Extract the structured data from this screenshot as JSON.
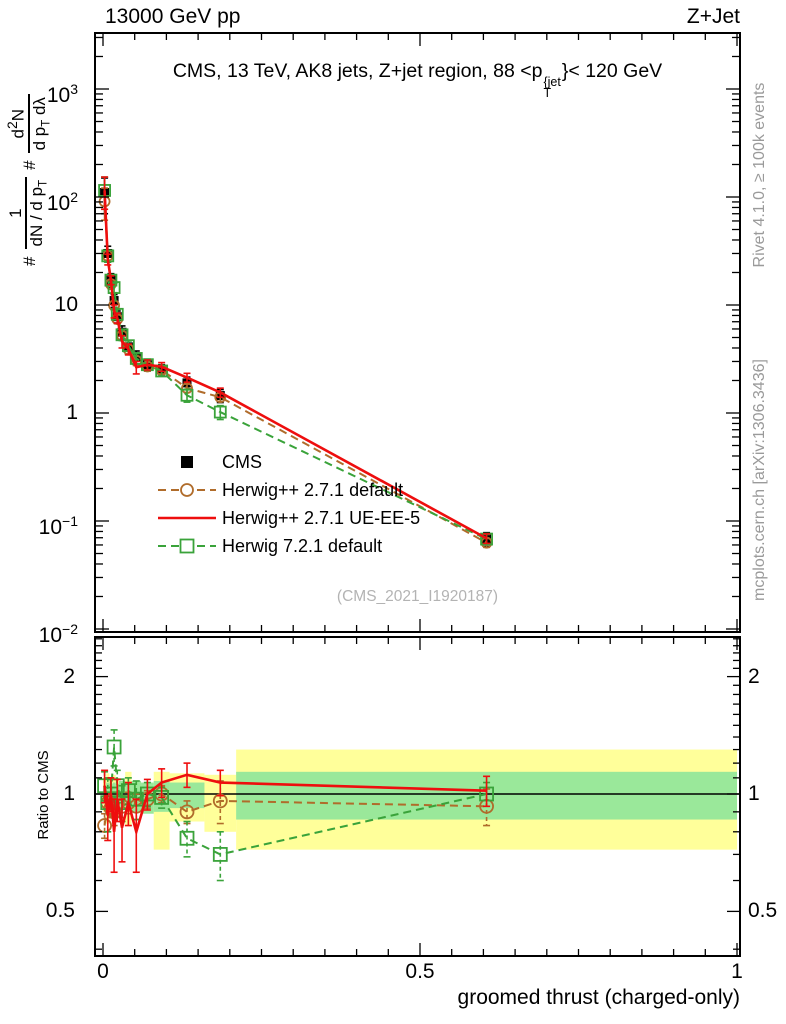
{
  "header": {
    "left": "13000 GeV pp",
    "right": "Z+Jet"
  },
  "panel_title": {
    "prefix": "CMS, 13 TeV, AK8 jets, Z+jet region, 88 <p",
    "sup": "{jet",
    "sub": "T",
    "suffix": "}< 120 GeV"
  },
  "y_axis_label": {
    "hash1": "#",
    "num1": "1",
    "den1a": "dN / d p",
    "den1_sub": "T",
    "hash2": "#",
    "num2a": "d",
    "num2_sup": "2",
    "num2b": "N",
    "den2a": "d p",
    "den2_sub": "T",
    "den2b": " dλ"
  },
  "ratio_axis_label": "Ratio to CMS",
  "x_axis_label": "groomed thrust (charged-only)",
  "watermark": "(CMS_2021_I1920187)",
  "side_notes": {
    "top": "Rivet 4.1.0, ≥ 100k events",
    "bottom": "mcplots.cern.ch [arXiv:1306.3436]"
  },
  "legend": [
    {
      "label": "CMS",
      "marker": "black-filled-square"
    },
    {
      "label": "Herwig++ 2.7.1 default",
      "marker": "brown-dashed-line-open-circle"
    },
    {
      "label": "Herwig++ 2.7.1 UE-EE-5",
      "marker": "red-solid-line"
    },
    {
      "label": "Herwig 7.2.1 default",
      "marker": "green-dashed-line-open-square"
    }
  ],
  "colors": {
    "cms": "#000000",
    "herwig_default": "#b06c2b",
    "herwig_ueee5": "#ee0e0e",
    "herwig7": "#3aa33a",
    "band_yellow": "#ffff9a",
    "band_green": "#9ae89a",
    "gray_note": "#9a9a9a",
    "watermark": "#b3b3b3"
  },
  "axes": {
    "x": {
      "min": 0,
      "max": 1,
      "minor_step": 0.05,
      "ticks": [
        {
          "v": 0,
          "label": "0"
        },
        {
          "v": 0.5,
          "label": "0.5"
        },
        {
          "v": 1,
          "label": "1"
        }
      ]
    },
    "y_main": {
      "scale": "log",
      "ticks": [
        {
          "v": 1000,
          "base": "10",
          "exp": "3"
        },
        {
          "v": 100,
          "base": "10",
          "exp": "2"
        },
        {
          "v": 10,
          "base": "10",
          "exp": ""
        },
        {
          "v": 1,
          "base": "1",
          "exp": ""
        },
        {
          "v": 0.1,
          "base": "10",
          "exp": "−1"
        },
        {
          "v": 0.01,
          "base": "10",
          "exp": "−2"
        }
      ]
    },
    "y_ratio": {
      "scale": "log",
      "ticks": [
        {
          "v": 2,
          "label": "2"
        },
        {
          "v": 1,
          "label": "1"
        },
        {
          "v": 0.5,
          "label": "0.5"
        }
      ]
    }
  },
  "chart_data": {
    "type": "line",
    "title": "CMS, 13 TeV, AK8 jets, Z+jet region, 88 <pT^{jet}< 120 GeV",
    "xlabel": "groomed thrust (charged-only)",
    "ylabel": "# 1/(dN/dpT) # d2N/(dpT dλ)",
    "ratio_label": "Ratio to CMS",
    "xlim": [
      0,
      1
    ],
    "ylim": [
      0.0093,
      3300
    ],
    "ratio_ylim": [
      0.385,
      2.53
    ],
    "x_edges": [
      0,
      0.005,
      0.01,
      0.015,
      0.02,
      0.025,
      0.035,
      0.045,
      0.06,
      0.08,
      0.105,
      0.16,
      0.21,
      1.0
    ],
    "x": [
      0.0025,
      0.0075,
      0.0125,
      0.0175,
      0.0225,
      0.03,
      0.04,
      0.0525,
      0.07,
      0.0925,
      0.1325,
      0.185,
      0.605
    ],
    "series": [
      {
        "id": "cms",
        "name": "CMS",
        "values": [
          110,
          30,
          17,
          11,
          7.8,
          5.6,
          4.1,
          3.3,
          2.8,
          2.5,
          1.9,
          1.45,
          0.068
        ],
        "errors": [
          40,
          5,
          2.5,
          1.5,
          1.0,
          0.8,
          0.6,
          0.45,
          0.35,
          0.3,
          0.25,
          0.2,
          0.01
        ],
        "ratio": null,
        "ratio_err": null
      },
      {
        "id": "herwig_default",
        "name": "Herwig++ 2.7.1 default",
        "values": [
          91,
          28.5,
          15.6,
          9.9,
          7.4,
          5.2,
          3.9,
          3.05,
          2.7,
          2.5,
          1.7,
          1.4,
          0.063
        ],
        "errors": [
          30,
          3,
          1.5,
          1,
          0.7,
          0.5,
          0.4,
          0.3,
          0.25,
          0.2,
          0.15,
          0.12,
          0.006
        ],
        "ratio": [
          0.83,
          0.95,
          0.92,
          0.9,
          0.95,
          0.93,
          0.95,
          0.93,
          0.97,
          1.0,
          0.9,
          0.96,
          0.93
        ],
        "ratio_err": [
          0.06,
          0.06,
          0.05,
          0.07,
          0.06,
          0.06,
          0.06,
          0.07,
          0.05,
          0.05,
          0.06,
          0.12,
          0.1
        ]
      },
      {
        "id": "herwig_ueee5",
        "name": "Herwig++ 2.7.1 UE-EE-5",
        "values": [
          115,
          26.5,
          17,
          8.8,
          7.6,
          4.6,
          3.9,
          2.65,
          2.8,
          2.68,
          2.13,
          1.55,
          0.069
        ],
        "errors": [
          38,
          3,
          1.6,
          1.2,
          0.8,
          0.6,
          0.45,
          0.35,
          0.3,
          0.25,
          0.2,
          0.15,
          0.007
        ],
        "ratio": [
          1.05,
          0.88,
          1.0,
          0.8,
          0.97,
          0.82,
          0.95,
          0.8,
          1.0,
          1.07,
          1.12,
          1.07,
          1.02
        ],
        "ratio_err": [
          0.1,
          0.12,
          0.1,
          0.17,
          0.12,
          0.15,
          0.12,
          0.17,
          0.09,
          0.09,
          0.08,
          0.08,
          0.09
        ]
      },
      {
        "id": "herwig7",
        "name": "Herwig 7.2.1 default",
        "values": [
          115,
          28.5,
          17,
          14.5,
          8.2,
          5.3,
          4.2,
          3.2,
          2.8,
          2.45,
          1.46,
          1.02,
          0.068
        ],
        "errors": [
          38,
          3.5,
          1.7,
          1.5,
          0.9,
          0.6,
          0.45,
          0.35,
          0.3,
          0.25,
          0.2,
          0.15,
          0.007
        ],
        "ratio": [
          1.05,
          0.95,
          1.0,
          1.32,
          1.05,
          0.95,
          1.02,
          0.97,
          1.0,
          0.98,
          0.77,
          0.7,
          1.0
        ],
        "ratio_err": [
          0.09,
          0.15,
          0.09,
          0.14,
          0.1,
          0.1,
          0.08,
          0.11,
          0.07,
          0.06,
          0.08,
          0.1,
          0.07
        ]
      }
    ],
    "ratio_bands": [
      {
        "x0": 0,
        "x1": 0.005,
        "yellow": [
          0.9,
          1.1
        ],
        "green": [
          0.95,
          1.05
        ]
      },
      {
        "x0": 0.005,
        "x1": 0.01,
        "yellow": [
          0.84,
          1.13
        ],
        "green": [
          0.93,
          1.07
        ]
      },
      {
        "x0": 0.01,
        "x1": 0.015,
        "yellow": [
          0.88,
          1.1
        ],
        "green": [
          0.94,
          1.06
        ]
      },
      {
        "x0": 0.015,
        "x1": 0.02,
        "yellow": [
          0.86,
          1.12
        ],
        "green": [
          0.93,
          1.07
        ]
      },
      {
        "x0": 0.02,
        "x1": 0.025,
        "yellow": [
          0.88,
          1.1
        ],
        "green": [
          0.94,
          1.06
        ]
      },
      {
        "x0": 0.025,
        "x1": 0.035,
        "yellow": null,
        "green": [
          0.91,
          1.08
        ]
      },
      {
        "x0": 0.035,
        "x1": 0.045,
        "yellow": [
          0.83,
          1.14
        ],
        "green": [
          0.92,
          1.07
        ]
      },
      {
        "x0": 0.045,
        "x1": 0.06,
        "yellow": null,
        "green": [
          0.9,
          1.08
        ]
      },
      {
        "x0": 0.06,
        "x1": 0.08,
        "yellow": null,
        "green": [
          0.89,
          1.07
        ]
      },
      {
        "x0": 0.08,
        "x1": 0.105,
        "yellow": [
          0.72,
          1.14
        ],
        "green": [
          0.9,
          1.08
        ]
      },
      {
        "x0": 0.105,
        "x1": 0.16,
        "yellow": [
          0.85,
          1.13
        ],
        "green": [
          0.92,
          1.07
        ]
      },
      {
        "x0": 0.16,
        "x1": 0.21,
        "yellow": [
          0.8,
          1.12
        ],
        "green": null
      },
      {
        "x0": 0.21,
        "x1": 1.0,
        "yellow": [
          0.72,
          1.3
        ],
        "green": [
          0.86,
          1.14
        ]
      }
    ],
    "legend_position": "center-left",
    "grid": false
  }
}
